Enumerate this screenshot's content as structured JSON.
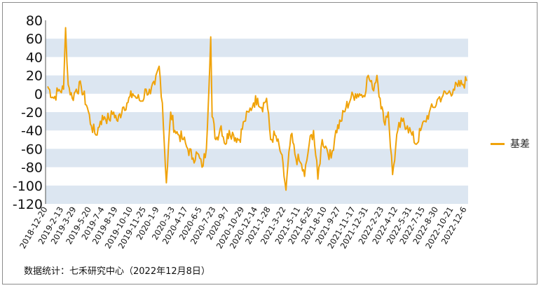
{
  "chart_data": {
    "type": "line",
    "title": "",
    "xlabel": "",
    "ylabel": "",
    "ylim": [
      -120,
      80
    ],
    "yticks": [
      80,
      60,
      40,
      20,
      0,
      -20,
      -40,
      -60,
      -80,
      -100,
      -120
    ],
    "band_color": "#dce6f1",
    "grid": false,
    "legend_position": "right",
    "x_tick_labels": [
      "2018-12-20",
      "2019-2-13",
      "2019-3-29",
      "2019-5-20",
      "2019-7-4",
      "2019-8-19",
      "2019-10-10",
      "2019-11-25",
      "2020-1-9",
      "2020-3-3",
      "2020-4-17",
      "2020-6-5",
      "2020-7-23",
      "2020-9-7",
      "2020-10-29",
      "2020-12-14",
      "2021-1-28",
      "2021-3-22",
      "2021-5-11",
      "2021-6-25",
      "2021-8-10",
      "2021-9-27",
      "2021-11-17",
      "2021-12-31",
      "2022-2-23",
      "2022-4-12",
      "2022-5-31",
      "2022-7-15",
      "2022-8-30",
      "2022-10-21",
      "2022-12-6"
    ],
    "series": [
      {
        "name": "基差",
        "color": "#f0a30a",
        "x": [
          "2018-12-20",
          "2019-1-10",
          "2019-1-25",
          "2019-2-13",
          "2019-2-20",
          "2019-3-1",
          "2019-3-15",
          "2019-3-29",
          "2019-4-15",
          "2019-5-6",
          "2019-5-20",
          "2019-6-5",
          "2019-6-20",
          "2019-7-4",
          "2019-7-20",
          "2019-8-5",
          "2019-8-19",
          "2019-9-5",
          "2019-9-20",
          "2019-10-10",
          "2019-10-25",
          "2019-11-10",
          "2019-11-25",
          "2019-12-10",
          "2019-12-25",
          "2020-1-9",
          "2020-1-20",
          "2020-2-3",
          "2020-2-18",
          "2020-3-3",
          "2020-3-18",
          "2020-4-1",
          "2020-4-17",
          "2020-5-5",
          "2020-5-20",
          "2020-6-5",
          "2020-6-20",
          "2020-7-5",
          "2020-7-10",
          "2020-7-23",
          "2020-8-10",
          "2020-8-25",
          "2020-9-7",
          "2020-9-22",
          "2020-10-12",
          "2020-10-29",
          "2020-11-14",
          "2020-11-30",
          "2020-12-14",
          "2020-12-28",
          "2021-1-14",
          "2021-1-28",
          "2021-2-12",
          "2021-3-5",
          "2021-3-22",
          "2021-4-8",
          "2021-4-25",
          "2021-5-11",
          "2021-5-25",
          "2021-6-10",
          "2021-6-25",
          "2021-7-10",
          "2021-7-25",
          "2021-8-10",
          "2021-8-25",
          "2021-9-10",
          "2021-9-27",
          "2021-10-15",
          "2021-11-1",
          "2021-11-17",
          "2021-12-1",
          "2021-12-15",
          "2021-12-31",
          "2022-1-15",
          "2022-1-30",
          "2022-2-10",
          "2022-2-23",
          "2022-3-10",
          "2022-3-25",
          "2022-4-12",
          "2022-4-28",
          "2022-5-15",
          "2022-5-31",
          "2022-6-15",
          "2022-6-30",
          "2022-7-15",
          "2022-7-30",
          "2022-8-15",
          "2022-8-30",
          "2022-9-15",
          "2022-9-30",
          "2022-10-21",
          "2022-11-5",
          "2022-11-20",
          "2022-12-6"
        ],
        "values": [
          8,
          -5,
          3,
          5,
          72,
          10,
          -5,
          5,
          8,
          -15,
          -35,
          -45,
          -30,
          -25,
          -28,
          -20,
          -30,
          -15,
          -10,
          0,
          -5,
          -8,
          5,
          0,
          10,
          30,
          -10,
          -97,
          -20,
          -40,
          -45,
          -50,
          -60,
          -70,
          -65,
          -80,
          -60,
          62,
          -25,
          -50,
          -35,
          -55,
          -40,
          -45,
          -50,
          -30,
          -20,
          -10,
          -5,
          -15,
          -5,
          -50,
          -45,
          -65,
          -105,
          -45,
          -70,
          -75,
          -90,
          -55,
          -40,
          -93,
          -50,
          -60,
          -70,
          -40,
          -30,
          -15,
          -5,
          0,
          0,
          -2,
          20,
          5,
          20,
          -5,
          -30,
          -20,
          -88,
          -40,
          -30,
          -35,
          -45,
          -55,
          -40,
          -30,
          -20,
          -15,
          -5,
          -2,
          0,
          5,
          8,
          10,
          14
        ]
      }
    ]
  },
  "source_note": "数据统计：七禾研究中心（2022年12月8日）"
}
